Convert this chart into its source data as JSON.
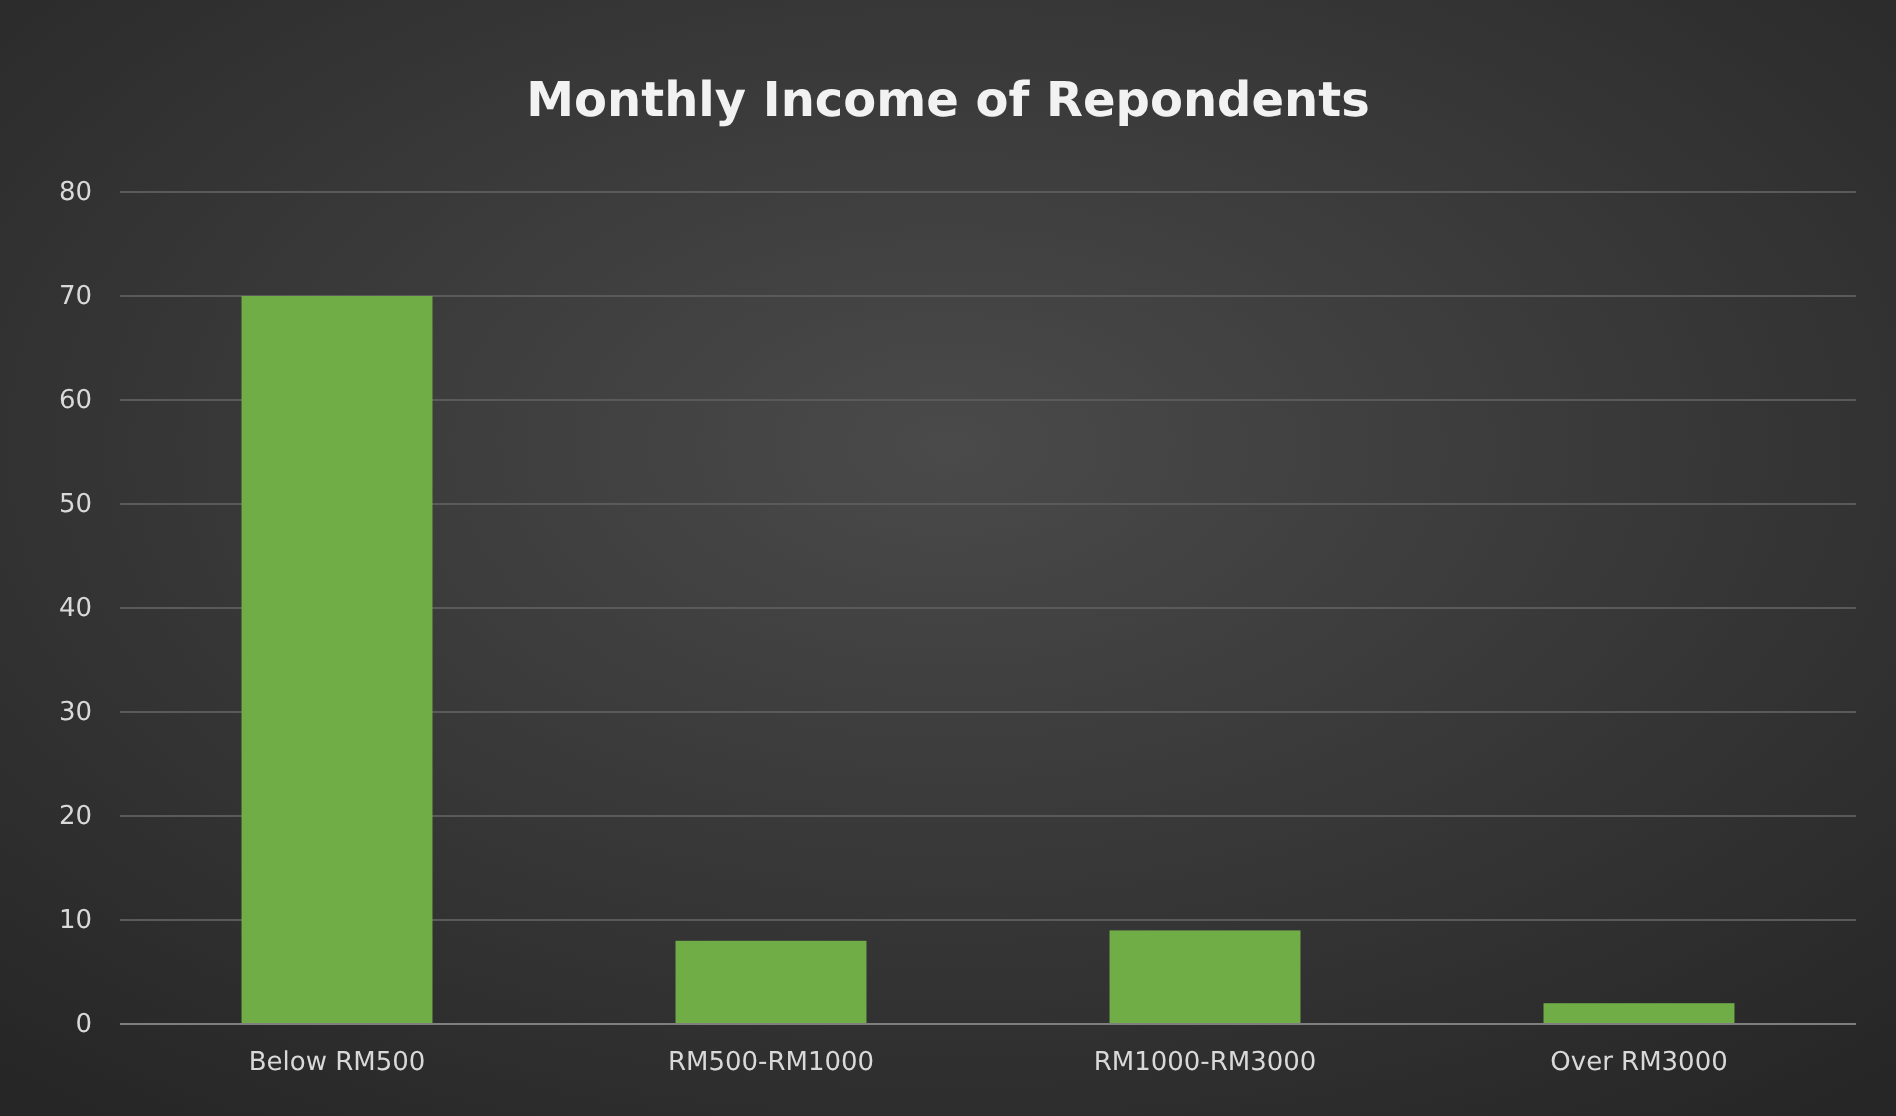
{
  "chart_data": {
    "type": "bar",
    "title": "Monthly  Income  of  Repondents",
    "categories": [
      "Below RM500",
      "RM500-RM1000",
      "RM1000-RM3000",
      "Over RM3000"
    ],
    "values": [
      70,
      8,
      9,
      2
    ],
    "color": "#70ad47",
    "ylim": [
      0,
      80
    ],
    "yticks": [
      0,
      10,
      20,
      30,
      40,
      50,
      60,
      70,
      80
    ],
    "grid": "y"
  }
}
